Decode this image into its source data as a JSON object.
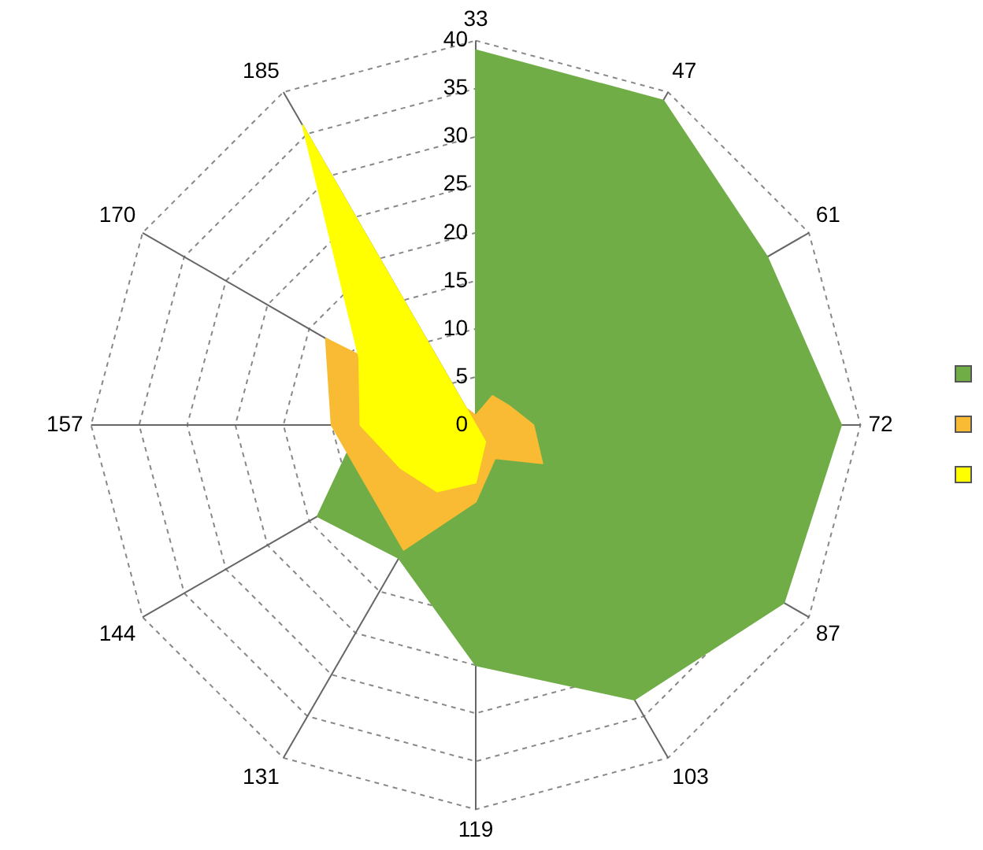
{
  "chart_data": {
    "type": "radar",
    "categories": [
      "33",
      "47",
      "61",
      "72",
      "87",
      "103",
      "119",
      "131",
      "144",
      "157",
      "170",
      "185"
    ],
    "series": [
      {
        "color": "#70ad47",
        "values": [
          39,
          39,
          35,
          38,
          37,
          33,
          25,
          16,
          19,
          12,
          0,
          0
        ]
      },
      {
        "color": "#f8bb33",
        "values": [
          1,
          3.5,
          4,
          6,
          8,
          4,
          8,
          15,
          13,
          15,
          18,
          2
        ]
      },
      {
        "color": "#ffff00",
        "values": [
          0,
          0,
          0,
          0,
          0,
          2,
          6,
          8,
          9,
          12,
          14,
          36
        ]
      }
    ],
    "ylim": [
      0,
      40
    ],
    "yticks": [
      0,
      5,
      10,
      15,
      20,
      25,
      30,
      35,
      40
    ],
    "grid": true
  }
}
